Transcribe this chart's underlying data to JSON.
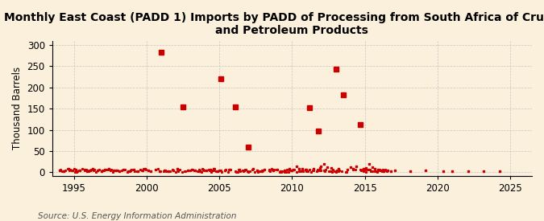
{
  "title": "Monthly East Coast (PADD 1) Imports by PADD of Processing from South Africa of Crude Oil\nand Petroleum Products",
  "ylabel": "Thousand Barrels",
  "source": "Source: U.S. Energy Information Administration",
  "xlim": [
    1993.5,
    2026.5
  ],
  "ylim": [
    -8,
    310
  ],
  "yticks": [
    0,
    50,
    100,
    150,
    200,
    250,
    300
  ],
  "xticks": [
    1995,
    2000,
    2005,
    2010,
    2015,
    2020,
    2025
  ],
  "marker_color": "#CC0000",
  "background_color": "#FAF0DC",
  "grid_color": "#BBBBBB",
  "title_fontsize": 10,
  "label_fontsize": 8.5,
  "tick_fontsize": 8.5,
  "source_fontsize": 7.5,
  "spikes": [
    [
      2001.0,
      283
    ],
    [
      2002.5,
      155
    ],
    [
      2005.1,
      220
    ],
    [
      2006.1,
      155
    ],
    [
      2007.0,
      60
    ],
    [
      2011.2,
      152
    ],
    [
      2013.0,
      243
    ],
    [
      2013.5,
      182
    ],
    [
      2014.7,
      112
    ],
    [
      2011.8,
      97
    ]
  ],
  "small_data": [
    [
      1994.0,
      5
    ],
    [
      1994.3,
      3
    ],
    [
      1994.6,
      8
    ],
    [
      1994.9,
      4
    ],
    [
      1995.1,
      6
    ],
    [
      1995.4,
      4
    ],
    [
      1995.7,
      7
    ],
    [
      1995.9,
      3
    ],
    [
      1996.1,
      5
    ],
    [
      1996.3,
      8
    ],
    [
      1996.6,
      4
    ],
    [
      1996.9,
      3
    ],
    [
      1997.1,
      6
    ],
    [
      1997.4,
      9
    ],
    [
      1997.7,
      4
    ],
    [
      1997.9,
      5
    ],
    [
      1998.1,
      3
    ],
    [
      1998.4,
      7
    ],
    [
      1998.7,
      2
    ],
    [
      1998.9,
      4
    ],
    [
      1999.1,
      6
    ],
    [
      1999.4,
      3
    ],
    [
      1999.7,
      5
    ],
    [
      1999.9,
      8
    ],
    [
      2000.1,
      4
    ],
    [
      2000.3,
      3
    ],
    [
      2000.6,
      6
    ],
    [
      2000.9,
      2
    ],
    [
      2001.2,
      4
    ],
    [
      2001.5,
      3
    ],
    [
      2001.8,
      5
    ],
    [
      2002.1,
      8
    ],
    [
      2002.8,
      4
    ],
    [
      2003.1,
      6
    ],
    [
      2003.3,
      5
    ],
    [
      2003.6,
      3
    ],
    [
      2003.9,
      7
    ],
    [
      2004.1,
      4
    ],
    [
      2004.4,
      6
    ],
    [
      2004.6,
      8
    ],
    [
      2004.9,
      3
    ],
    [
      2005.4,
      4
    ],
    [
      2005.7,
      6
    ],
    [
      2006.4,
      7
    ],
    [
      2006.7,
      5
    ],
    [
      2007.3,
      8
    ],
    [
      2007.6,
      4
    ],
    [
      2007.9,
      3
    ],
    [
      2008.1,
      6
    ],
    [
      2008.4,
      5
    ],
    [
      2008.7,
      4
    ],
    [
      2009.0,
      7
    ],
    [
      2009.2,
      3
    ],
    [
      2009.5,
      5
    ],
    [
      2009.8,
      8
    ],
    [
      2010.0,
      4
    ],
    [
      2010.1,
      6
    ],
    [
      2010.3,
      15
    ],
    [
      2010.5,
      9
    ],
    [
      2010.7,
      8
    ],
    [
      2010.9,
      6
    ],
    [
      2011.0,
      6
    ],
    [
      2011.5,
      8
    ],
    [
      2011.9,
      10
    ],
    [
      2012.0,
      15
    ],
    [
      2012.2,
      20
    ],
    [
      2012.4,
      12
    ],
    [
      2012.7,
      10
    ],
    [
      2013.2,
      8
    ],
    [
      2013.8,
      6
    ],
    [
      2014.0,
      12
    ],
    [
      2014.2,
      8
    ],
    [
      2014.4,
      15
    ],
    [
      2014.9,
      8
    ],
    [
      2015.1,
      10
    ],
    [
      2015.3,
      20
    ],
    [
      2015.5,
      12
    ],
    [
      2015.7,
      8
    ],
    [
      2015.9,
      6
    ],
    [
      2016.1,
      4
    ],
    [
      2016.3,
      3
    ],
    [
      2016.6,
      5
    ],
    [
      2016.8,
      2
    ],
    [
      2017.1,
      4
    ],
    [
      2018.1,
      3
    ],
    [
      2019.2,
      4
    ],
    [
      2020.4,
      2
    ],
    [
      2021.0,
      3
    ],
    [
      2022.1,
      3
    ],
    [
      2023.2,
      2
    ],
    [
      2024.3,
      2
    ]
  ],
  "dense_x": [
    1994.08,
    1994.17,
    1994.25,
    1994.33,
    1994.42,
    1994.5,
    1994.58,
    1994.67,
    1994.75,
    1994.83,
    1994.92,
    1995.0,
    1995.08,
    1995.17,
    1995.25,
    1995.33,
    1995.42,
    1995.5,
    1995.58,
    1995.67,
    1995.75,
    1995.83,
    1995.92,
    1996.0,
    1996.08,
    1996.17,
    1996.25,
    1996.33,
    1996.42,
    1996.5,
    1996.58,
    1996.67,
    1996.75,
    1996.83,
    1996.92,
    1997.0,
    1997.08,
    1997.17,
    1997.25,
    1997.33,
    1997.42,
    1997.5,
    1997.58,
    1997.67,
    1997.75,
    1997.83,
    1997.92,
    1998.0,
    1998.08,
    1998.17,
    1998.25,
    1998.33,
    1998.42,
    1998.5,
    1998.58,
    1998.67,
    1998.75,
    1998.83,
    1998.92,
    1999.0,
    1999.08,
    1999.17,
    1999.25,
    1999.33,
    1999.42,
    1999.5,
    1999.58,
    1999.67,
    1999.75,
    1999.83,
    1999.92,
    2000.0,
    2000.08,
    2000.17,
    2000.25,
    2000.33,
    2000.42,
    2000.5,
    2000.58,
    2000.67,
    2000.75,
    2000.83,
    2000.92,
    2001.08,
    2001.17,
    2001.25,
    2001.33,
    2001.42,
    2001.5,
    2001.58,
    2001.67,
    2001.75,
    2001.83,
    2001.92,
    2002.0,
    2002.08,
    2002.17,
    2002.25,
    2002.33,
    2002.42,
    2002.58,
    2002.67,
    2002.75,
    2002.83,
    2002.92,
    2003.0,
    2003.08,
    2003.17,
    2003.25,
    2003.33,
    2003.42,
    2003.5,
    2003.58,
    2003.67,
    2003.75,
    2003.83,
    2003.92,
    2004.0,
    2004.08,
    2004.17,
    2004.25,
    2004.33,
    2004.42,
    2004.5,
    2004.58,
    2004.67,
    2004.75,
    2004.83,
    2004.92,
    2005.0,
    2005.08,
    2005.17,
    2005.25,
    2005.33,
    2005.42,
    2005.5,
    2005.58,
    2005.67,
    2005.75,
    2005.83,
    2005.92,
    2006.0,
    2006.08,
    2006.17,
    2006.25,
    2006.33,
    2006.42,
    2006.5,
    2006.58,
    2006.67,
    2006.75,
    2006.83,
    2006.92,
    2007.0,
    2007.08,
    2007.17,
    2007.25,
    2007.33,
    2007.42,
    2007.5,
    2007.58,
    2007.67,
    2007.75,
    2007.83,
    2007.92,
    2008.0,
    2008.08,
    2008.17,
    2008.25,
    2008.33,
    2008.42,
    2008.5,
    2008.58,
    2008.67,
    2008.75,
    2008.83,
    2008.92,
    2009.0,
    2009.08,
    2009.17,
    2009.25,
    2009.33,
    2009.42,
    2009.5,
    2009.58,
    2009.67,
    2009.75,
    2009.83,
    2009.92,
    2010.0,
    2010.08,
    2010.17,
    2010.25,
    2010.33,
    2010.42,
    2010.5,
    2010.58,
    2010.67,
    2010.75,
    2010.83,
    2010.92,
    2011.0,
    2011.08,
    2011.17,
    2011.25,
    2011.33,
    2011.42,
    2011.5,
    2011.58,
    2011.67,
    2011.75,
    2011.83,
    2011.92,
    2012.0,
    2012.08,
    2012.17,
    2012.25,
    2012.33,
    2012.42,
    2012.5,
    2012.58,
    2012.67,
    2012.75,
    2012.83,
    2012.92,
    2013.0,
    2013.08,
    2013.17,
    2013.25,
    2013.33,
    2013.42,
    2013.5,
    2013.58,
    2013.67,
    2013.75,
    2013.83,
    2013.92,
    2014.0,
    2014.08,
    2014.17,
    2014.25,
    2014.33,
    2014.42,
    2014.5,
    2014.58,
    2014.67,
    2014.75,
    2014.83,
    2014.92,
    2015.0,
    2015.08,
    2015.17,
    2015.25,
    2015.33,
    2015.42,
    2015.5,
    2015.58,
    2015.67,
    2015.75,
    2015.83,
    2015.92,
    2016.0,
    2016.08,
    2016.17,
    2016.25,
    2016.33,
    2016.42,
    2016.5,
    2016.58
  ]
}
